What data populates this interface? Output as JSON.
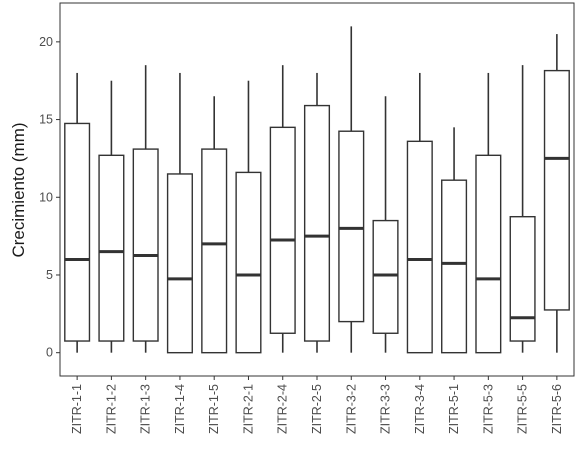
{
  "chart_data": {
    "type": "box",
    "title": "",
    "xlabel": "",
    "ylabel": "Crecimiento (mm)",
    "ylim": [
      -1.5,
      22.5
    ],
    "yticks": [
      0,
      5,
      10,
      15,
      20
    ],
    "grid": false,
    "categories": [
      "ZITR-1-1",
      "ZITR-1-2",
      "ZITR-1-3",
      "ZITR-1-4",
      "ZITR-1-5",
      "ZITR-2-1",
      "ZITR-2-4",
      "ZITR-2-5",
      "ZITR-3-2",
      "ZITR-3-3",
      "ZITR-3-4",
      "ZITR-5-1",
      "ZITR-5-3",
      "ZITR-5-5",
      "ZITR-5-6"
    ],
    "boxes": [
      {
        "min": 0,
        "q1": 0.75,
        "median": 6.0,
        "q3": 14.75,
        "max": 18.0
      },
      {
        "min": 0,
        "q1": 0.75,
        "median": 6.5,
        "q3": 12.7,
        "max": 17.5
      },
      {
        "min": 0,
        "q1": 0.75,
        "median": 6.25,
        "q3": 13.1,
        "max": 18.5
      },
      {
        "min": 0,
        "q1": 0,
        "median": 4.75,
        "q3": 11.5,
        "max": 18.0
      },
      {
        "min": 0,
        "q1": 0,
        "median": 7.0,
        "q3": 13.1,
        "max": 16.5
      },
      {
        "min": 0,
        "q1": 0,
        "median": 5.0,
        "q3": 11.6,
        "max": 17.5
      },
      {
        "min": 0,
        "q1": 1.25,
        "median": 7.25,
        "q3": 14.5,
        "max": 18.5
      },
      {
        "min": 0,
        "q1": 0.75,
        "median": 7.5,
        "q3": 15.9,
        "max": 18.0
      },
      {
        "min": 0,
        "q1": 2.0,
        "median": 8.0,
        "q3": 14.25,
        "max": 21.0
      },
      {
        "min": 0,
        "q1": 1.25,
        "median": 5.0,
        "q3": 8.5,
        "max": 16.5
      },
      {
        "min": 0,
        "q1": 0,
        "median": 6.0,
        "q3": 13.6,
        "max": 18.0
      },
      {
        "min": 0,
        "q1": 0,
        "median": 5.75,
        "q3": 11.1,
        "max": 14.5
      },
      {
        "min": 0,
        "q1": 0,
        "median": 4.75,
        "q3": 12.7,
        "max": 18.0
      },
      {
        "min": 0,
        "q1": 0.75,
        "median": 2.25,
        "q3": 8.75,
        "max": 18.5
      },
      {
        "min": 0,
        "q1": 2.75,
        "median": 12.5,
        "q3": 18.15,
        "max": 20.5
      }
    ],
    "colors": {
      "box_stroke": "#333333",
      "box_fill": "#ffffff",
      "panel_border": "#333333",
      "tick_text": "#4d4d4d",
      "axis_text": "#1a1a1a"
    }
  }
}
